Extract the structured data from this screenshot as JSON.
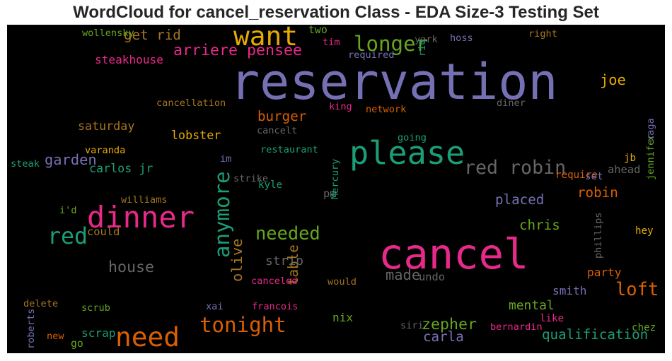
{
  "chart_data": {
    "type": "wordcloud",
    "title": "WordCloud for cancel_reservation Class - EDA Size-3 Testing Set",
    "background": "#000000",
    "words": [
      {
        "text": "reservation",
        "weight": 100,
        "color": "#7570b3"
      },
      {
        "text": "cancel",
        "weight": 82,
        "color": "#e7298a"
      },
      {
        "text": "please",
        "weight": 60,
        "color": "#1b9e77"
      },
      {
        "text": "dinner",
        "weight": 55,
        "color": "#e7298a"
      },
      {
        "text": "want",
        "weight": 48,
        "color": "#e6ab02"
      },
      {
        "text": "need",
        "weight": 48,
        "color": "#d95f02"
      },
      {
        "text": "anymore",
        "weight": 34,
        "color": "#1b9e77",
        "vertical": true
      },
      {
        "text": "longer",
        "weight": 34,
        "color": "#66a61e"
      },
      {
        "text": "red",
        "weight": 38,
        "color": "#1b9e77"
      },
      {
        "text": "tonight",
        "weight": 34,
        "color": "#d95f02"
      },
      {
        "text": "red robin",
        "weight": 30,
        "color": "#666666"
      },
      {
        "text": "loft",
        "weight": 28,
        "color": "#d95f02"
      },
      {
        "text": "needed",
        "weight": 28,
        "color": "#66a61e"
      },
      {
        "text": "arriere pensee",
        "weight": 22,
        "color": "#e7298a"
      },
      {
        "text": "house",
        "weight": 22,
        "color": "#666666"
      },
      {
        "text": "zepher",
        "weight": 22,
        "color": "#66a61e"
      },
      {
        "text": "garden",
        "weight": 20,
        "color": "#7570b3"
      },
      {
        "text": "joe",
        "weight": 20,
        "color": "#e6ab02"
      },
      {
        "text": "olive",
        "weight": 20,
        "color": "#a6761d",
        "vertical": true
      },
      {
        "text": "made",
        "weight": 20,
        "color": "#666666"
      },
      {
        "text": "get rid",
        "weight": 18,
        "color": "#a6761d"
      },
      {
        "text": "burger",
        "weight": 18,
        "color": "#d95f02"
      },
      {
        "text": "placed",
        "weight": 18,
        "color": "#7570b3"
      },
      {
        "text": "robin",
        "weight": 18,
        "color": "#d95f02"
      },
      {
        "text": "table",
        "weight": 18,
        "color": "#a6761d",
        "vertical": true
      },
      {
        "text": "chris",
        "weight": 18,
        "color": "#66a61e"
      },
      {
        "text": "qualification",
        "weight": 18,
        "color": "#1b9e77"
      },
      {
        "text": "carla",
        "weight": 18,
        "color": "#7570b3"
      },
      {
        "text": "mental",
        "weight": 16,
        "color": "#66a61e"
      },
      {
        "text": "strip",
        "weight": 16,
        "color": "#666666"
      },
      {
        "text": "carlos jr",
        "weight": 14,
        "color": "#1b9e77"
      },
      {
        "text": "lobster",
        "weight": 14,
        "color": "#e6ab02"
      },
      {
        "text": "saturday",
        "weight": 14,
        "color": "#a6761d"
      },
      {
        "text": "steakhouse",
        "weight": 13,
        "color": "#e7298a"
      },
      {
        "text": "smith",
        "weight": 13,
        "color": "#7570b3"
      },
      {
        "text": "party",
        "weight": 13,
        "color": "#d95f02"
      },
      {
        "text": "nix",
        "weight": 13,
        "color": "#66a61e"
      },
      {
        "text": "scrap",
        "weight": 13,
        "color": "#1b9e77"
      },
      {
        "text": "could",
        "weight": 12,
        "color": "#a6761d"
      },
      {
        "text": "pm",
        "weight": 12,
        "color": "#666666"
      },
      {
        "text": "undo",
        "weight": 12,
        "color": "#666666"
      },
      {
        "text": "ahead",
        "weight": 12,
        "color": "#666666"
      },
      {
        "text": "two",
        "weight": 11,
        "color": "#66a61e"
      },
      {
        "text": "go",
        "weight": 11,
        "color": "#66a61e"
      },
      {
        "text": "kyle",
        "weight": 10,
        "color": "#1b9e77"
      },
      {
        "text": "hey",
        "weight": 10,
        "color": "#e6ab02"
      },
      {
        "text": "jb",
        "weight": 10,
        "color": "#e6ab02"
      },
      {
        "text": "require",
        "weight": 10,
        "color": "#d95f02"
      },
      {
        "text": "set",
        "weight": 10,
        "color": "#7570b3"
      },
      {
        "text": "like",
        "weight": 10,
        "color": "#e7298a"
      },
      {
        "text": "chez",
        "weight": 10,
        "color": "#66a61e"
      },
      {
        "text": "tim",
        "weight": 9,
        "color": "#e7298a"
      },
      {
        "text": "king",
        "weight": 9,
        "color": "#e7298a"
      },
      {
        "text": "network",
        "weight": 9,
        "color": "#d95f02"
      },
      {
        "text": "diner",
        "weight": 9,
        "color": "#666666"
      },
      {
        "text": "hoss",
        "weight": 9,
        "color": "#7570b3"
      },
      {
        "text": "right",
        "weight": 9,
        "color": "#a6761d"
      },
      {
        "text": "york",
        "weight": 9,
        "color": "#666666"
      },
      {
        "text": "rid",
        "weight": 9,
        "color": "#1b9e77",
        "vertical": true
      },
      {
        "text": "required",
        "weight": 9,
        "color": "#7570b3"
      },
      {
        "text": "wollensky",
        "weight": 9,
        "color": "#66a61e"
      },
      {
        "text": "cancellation",
        "weight": 9,
        "color": "#a6761d"
      },
      {
        "text": "cancelt",
        "weight": 9,
        "color": "#666666"
      },
      {
        "text": "going",
        "weight": 9,
        "color": "#1b9e77"
      },
      {
        "text": "restaurant",
        "weight": 9,
        "color": "#1b9e77"
      },
      {
        "text": "varanda",
        "weight": 9,
        "color": "#e6ab02"
      },
      {
        "text": "steak",
        "weight": 9,
        "color": "#1b9e77"
      },
      {
        "text": "im",
        "weight": 9,
        "color": "#7570b3"
      },
      {
        "text": "strike",
        "weight": 9,
        "color": "#666666"
      },
      {
        "text": "Mercury",
        "weight": 9,
        "color": "#1b9e77",
        "vertical": true
      },
      {
        "text": "williams",
        "weight": 9,
        "color": "#a6761d"
      },
      {
        "text": "i'd",
        "weight": 9,
        "color": "#66a61e"
      },
      {
        "text": "canceled",
        "weight": 9,
        "color": "#e7298a"
      },
      {
        "text": "would",
        "weight": 9,
        "color": "#a6761d"
      },
      {
        "text": "delete",
        "weight": 9,
        "color": "#a6761d"
      },
      {
        "text": "scrub",
        "weight": 9,
        "color": "#66a61e"
      },
      {
        "text": "xai",
        "weight": 9,
        "color": "#7570b3"
      },
      {
        "text": "francois",
        "weight": 9,
        "color": "#e7298a"
      },
      {
        "text": "siri",
        "weight": 9,
        "color": "#666666"
      },
      {
        "text": "bernardin",
        "weight": 9,
        "color": "#e7298a"
      },
      {
        "text": "new",
        "weight": 9,
        "color": "#d95f02"
      },
      {
        "text": "roberts",
        "weight": 9,
        "color": "#7570b3",
        "vertical": true
      },
      {
        "text": "phillips",
        "weight": 9,
        "color": "#666666",
        "vertical": true
      },
      {
        "text": "jennifer",
        "weight": 9,
        "color": "#66a61e",
        "vertical": true
      },
      {
        "text": "xaga",
        "weight": 9,
        "color": "#7570b3",
        "vertical": true
      }
    ]
  }
}
